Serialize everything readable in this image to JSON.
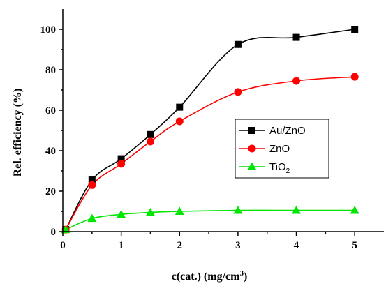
{
  "chart_data": {
    "type": "line",
    "xlabel": "c(cat.) (mg/cm",
    "xlabel_sup": "3",
    "xlabel_end": ")",
    "ylabel": "Rel. efficiency (%)",
    "xlim": [
      0,
      5.5
    ],
    "ylim": [
      0,
      110
    ],
    "x_ticks": [
      "0",
      "1",
      "2",
      "3",
      "4",
      "5"
    ],
    "y_ticks": [
      "0",
      "20",
      "40",
      "60",
      "80",
      "100"
    ],
    "legend_position": "center-right",
    "series": [
      {
        "name": "Au/ZnO",
        "color": "#000000",
        "marker": "square",
        "points": [
          [
            0.05,
            1
          ],
          [
            0.5,
            25.5
          ],
          [
            1.0,
            36
          ],
          [
            1.5,
            48
          ],
          [
            2.0,
            61.5
          ],
          [
            3.0,
            92.5
          ],
          [
            4.0,
            96
          ],
          [
            5.0,
            100
          ]
        ]
      },
      {
        "name": "ZnO",
        "color": "#ff0000",
        "marker": "circle",
        "points": [
          [
            0.05,
            1
          ],
          [
            0.5,
            23
          ],
          [
            1.0,
            33.5
          ],
          [
            1.5,
            44.5
          ],
          [
            2.0,
            54.5
          ],
          [
            3.0,
            69
          ],
          [
            4.0,
            74.5
          ],
          [
            5.0,
            76.5
          ]
        ]
      },
      {
        "name": "TiO",
        "name_sub": "2",
        "color": "#00e600",
        "marker": "triangle",
        "points": [
          [
            0.05,
            1
          ],
          [
            0.5,
            6.5
          ],
          [
            1.0,
            8.5
          ],
          [
            1.5,
            9.5
          ],
          [
            2.0,
            10
          ],
          [
            3.0,
            10.5
          ],
          [
            4.0,
            10.5
          ],
          [
            5.0,
            10.5
          ]
        ]
      }
    ]
  }
}
